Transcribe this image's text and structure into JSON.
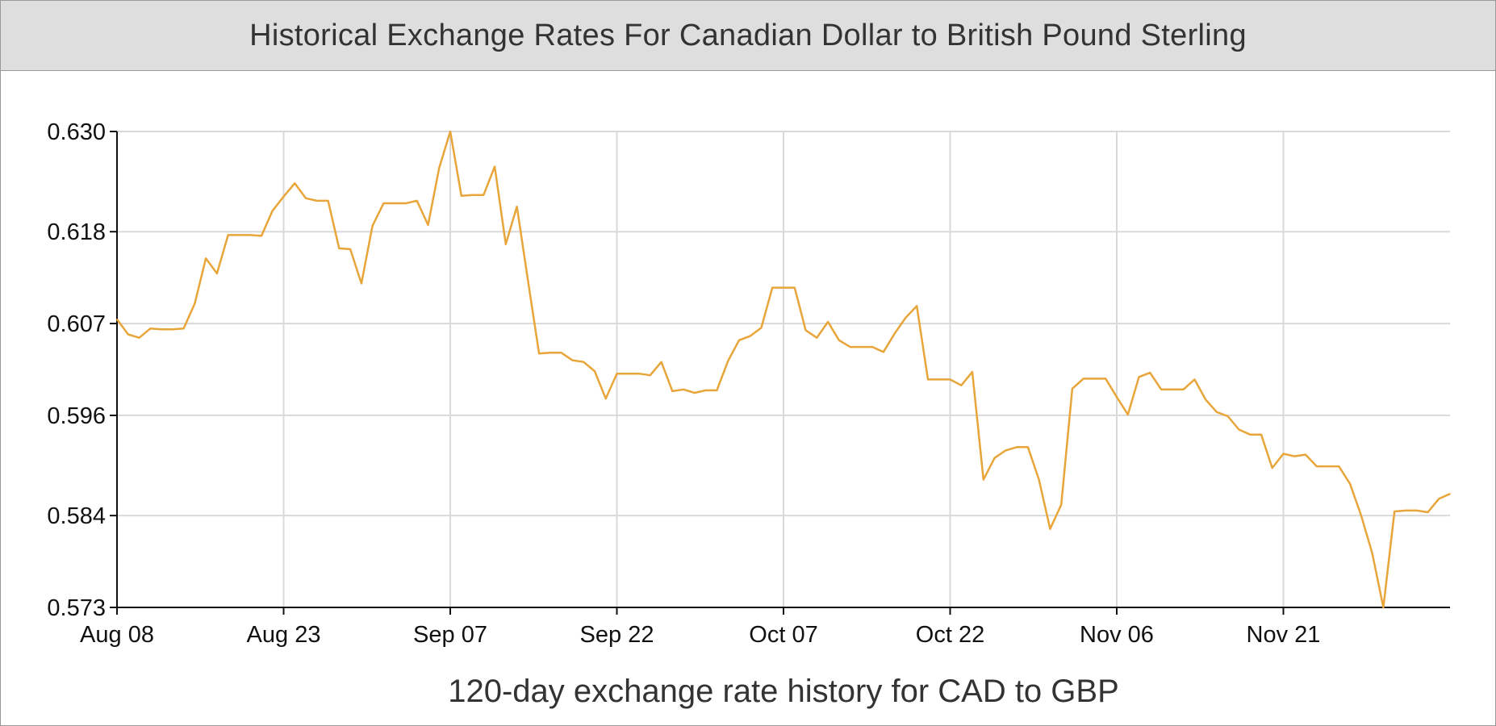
{
  "header": {
    "title": "Historical Exchange Rates For Canadian Dollar to British Pound Sterling"
  },
  "chart_data": {
    "type": "line",
    "title": "Historical Exchange Rates For Canadian Dollar to British Pound Sterling",
    "xlabel": "120-day exchange rate history for CAD to GBP",
    "ylabel": "",
    "x_start": "Aug 08",
    "x_ticks": [
      {
        "day": 0,
        "label": "Aug 08"
      },
      {
        "day": 15,
        "label": "Aug 23"
      },
      {
        "day": 30,
        "label": "Sep 07"
      },
      {
        "day": 45,
        "label": "Sep 22"
      },
      {
        "day": 60,
        "label": "Oct 07"
      },
      {
        "day": 75,
        "label": "Oct 22"
      },
      {
        "day": 90,
        "label": "Nov 06"
      },
      {
        "day": 105,
        "label": "Nov 21"
      }
    ],
    "y_ticks": [
      "0.630",
      "0.618",
      "0.607",
      "0.596",
      "0.584",
      "0.573"
    ],
    "xlim": [
      0,
      120
    ],
    "ylim": [
      0.573,
      0.63
    ],
    "grid": true,
    "color": "#e8a53a",
    "series": [
      {
        "x": [
          0,
          1,
          2,
          3,
          4,
          5,
          6,
          7,
          8,
          9,
          10,
          11,
          12,
          13,
          14,
          15,
          16,
          17,
          18,
          19,
          20,
          21,
          22,
          23,
          24,
          25,
          26,
          27,
          28,
          29,
          30,
          31,
          32,
          33,
          34,
          35,
          36,
          37,
          38,
          39,
          40,
          41,
          42,
          43,
          44,
          45,
          46,
          47,
          48,
          49,
          50,
          51,
          52,
          53,
          54,
          55,
          56,
          57,
          58,
          59,
          60,
          61,
          62,
          63,
          64,
          65,
          66,
          67,
          68,
          69,
          70,
          71,
          72,
          73,
          74,
          75,
          76,
          77,
          78,
          79,
          80,
          81,
          82,
          83,
          84,
          85,
          86,
          87,
          88,
          89,
          90,
          91,
          92,
          93,
          94,
          95,
          96,
          97,
          98,
          99,
          100,
          101,
          102,
          103,
          104,
          105,
          106,
          107,
          108,
          109,
          110,
          111,
          112,
          113,
          114,
          115,
          116,
          117,
          118,
          119,
          120
        ],
        "values": [
          0.6075,
          0.6057,
          0.6053,
          0.6064,
          0.6063,
          0.6063,
          0.6064,
          0.6094,
          0.6148,
          0.613,
          0.6176,
          0.6176,
          0.6176,
          0.6175,
          0.6205,
          0.6222,
          0.6238,
          0.622,
          0.6217,
          0.6217,
          0.616,
          0.6159,
          0.6118,
          0.6187,
          0.6214,
          0.6214,
          0.6214,
          0.6217,
          0.6188,
          0.6256,
          0.63,
          0.6223,
          0.6224,
          0.6224,
          0.6258,
          0.6165,
          0.621,
          0.6121,
          0.6034,
          0.6035,
          0.6035,
          0.6026,
          0.6024,
          0.6013,
          0.598,
          0.601,
          0.601,
          0.601,
          0.6008,
          0.6024,
          0.5989,
          0.5991,
          0.5987,
          0.599,
          0.599,
          0.6025,
          0.605,
          0.6055,
          0.6065,
          0.6113,
          0.6113,
          0.6113,
          0.6062,
          0.6053,
          0.6072,
          0.605,
          0.6042,
          0.6042,
          0.6042,
          0.6036,
          0.6058,
          0.6077,
          0.6091,
          0.6003,
          0.6003,
          0.6003,
          0.5996,
          0.6012,
          0.5883,
          0.5909,
          0.5918,
          0.5922,
          0.5922,
          0.5883,
          0.5824,
          0.5853,
          0.5992,
          0.6004,
          0.6004,
          0.6004,
          0.5982,
          0.5961,
          0.6006,
          0.6011,
          0.5991,
          0.5991,
          0.5991,
          0.6003,
          0.5979,
          0.5964,
          0.5959,
          0.5943,
          0.5937,
          0.5937,
          0.5897,
          0.5914,
          0.5911,
          0.5913,
          0.5899,
          0.5899,
          0.5899,
          0.5878,
          0.584,
          0.5795,
          0.573,
          0.5845,
          0.5846,
          0.5846,
          0.5844,
          0.586,
          0.5866
        ]
      }
    ]
  }
}
